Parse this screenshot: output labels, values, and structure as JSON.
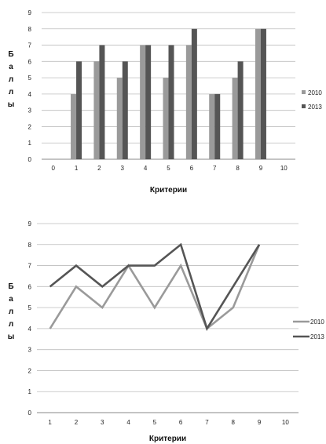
{
  "chart_data": [
    {
      "type": "bar",
      "categories": [
        "0",
        "1",
        "2",
        "3",
        "4",
        "5",
        "6",
        "7",
        "8",
        "9",
        "10"
      ],
      "series": [
        {
          "name": "2010",
          "values": [
            null,
            4,
            6,
            5,
            7,
            5,
            7,
            4,
            5,
            8,
            null
          ],
          "color": "#9a9a9a"
        },
        {
          "name": "2013",
          "values": [
            null,
            6,
            7,
            6,
            7,
            7,
            8,
            4,
            6,
            8,
            null
          ],
          "color": "#555555"
        }
      ],
      "xlabel": "Критерии",
      "ylabel": [
        "Б",
        "а",
        "л",
        "л",
        "ы"
      ],
      "ylim": [
        0,
        9
      ],
      "yticks": [
        "0",
        "1",
        "2",
        "3",
        "4",
        "5",
        "6",
        "7",
        "8",
        "9"
      ],
      "grid": true,
      "legend": "right"
    },
    {
      "type": "line",
      "categories": [
        "1",
        "2",
        "3",
        "4",
        "5",
        "6",
        "7",
        "8",
        "9",
        "10"
      ],
      "series": [
        {
          "name": "2010",
          "values": [
            4,
            6,
            5,
            7,
            5,
            7,
            4,
            5,
            8,
            null
          ],
          "color": "#9a9a9a"
        },
        {
          "name": "2013",
          "values": [
            6,
            7,
            6,
            7,
            7,
            8,
            4,
            6,
            8,
            null
          ],
          "color": "#555555"
        }
      ],
      "xlabel": "Критерии",
      "ylabel": [
        "Б",
        "а",
        "л",
        "л",
        "ы"
      ],
      "ylim": [
        0,
        9
      ],
      "yticks": [
        "0",
        "1",
        "2",
        "3",
        "4",
        "5",
        "6",
        "7",
        "8",
        "9"
      ],
      "grid": true,
      "legend": "right"
    }
  ]
}
